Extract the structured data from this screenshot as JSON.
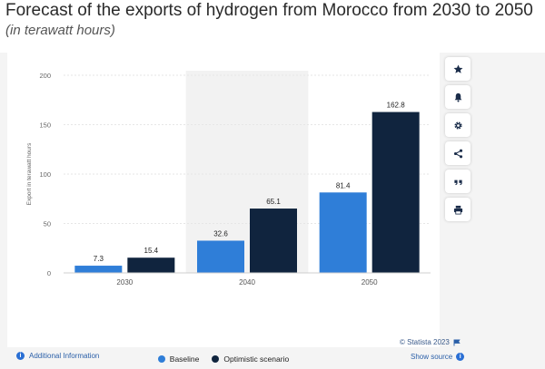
{
  "header": {
    "title": "Forecast of the exports of hydrogen from Morocco from 2030 to 2050",
    "subtitle": "(in terawatt hours)"
  },
  "colors": {
    "baseline": "#2f7ed8",
    "optimistic": "#10243e",
    "highlight_band": "#f2f2f2",
    "grid": "#e6e6e6"
  },
  "toolbar": {
    "buttons": [
      {
        "icon": "star-icon"
      },
      {
        "icon": "bell-icon"
      },
      {
        "icon": "gear-icon"
      },
      {
        "icon": "share-icon"
      },
      {
        "icon": "quote-icon"
      },
      {
        "icon": "print-icon"
      }
    ]
  },
  "legend": {
    "baseline_label": "Baseline",
    "optimistic_label": "Optimistic scenario"
  },
  "footer": {
    "credit": "© Statista 2023",
    "source": "Show source",
    "additional_info": "Additional Information"
  },
  "chart_data": {
    "type": "bar",
    "title": "Forecast of the exports of hydrogen from Morocco from 2030 to 2050",
    "subtitle": "(in terawatt hours)",
    "categories": [
      "2030",
      "2040",
      "2050"
    ],
    "series": [
      {
        "name": "Baseline",
        "values": [
          7.3,
          32.6,
          81.4
        ]
      },
      {
        "name": "Optimistic scenario",
        "values": [
          15.4,
          65.1,
          162.8
        ]
      }
    ],
    "value_labels": [
      [
        "7.3",
        "32.6",
        "81.4"
      ],
      [
        "15.4",
        "65.1",
        "162.8"
      ]
    ],
    "xlabel": "",
    "ylabel": "Export in terawatt hours",
    "ylim": [
      0,
      200
    ],
    "yticks": [
      0,
      50,
      100,
      150,
      200
    ],
    "highlighted_category": "2040",
    "grid": true,
    "legend_position": "bottom"
  }
}
